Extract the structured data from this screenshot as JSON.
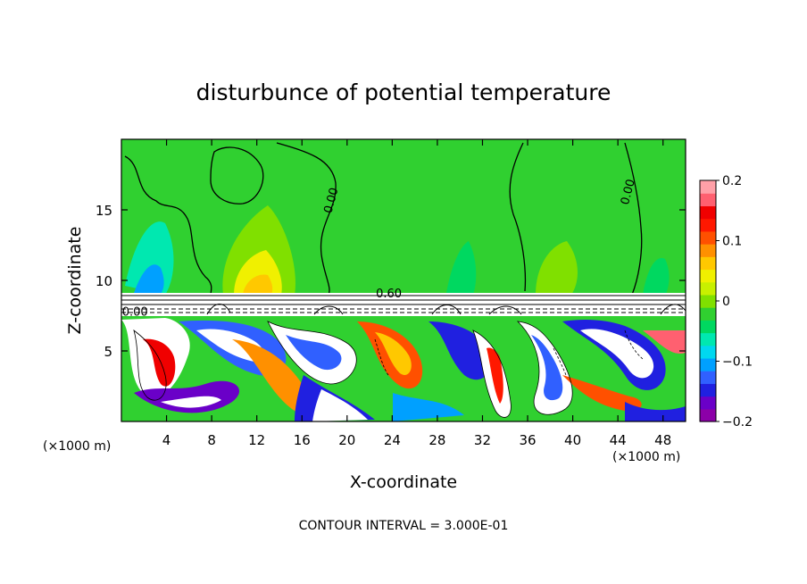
{
  "chart_data": {
    "type": "heatmap",
    "title": "disturbunce of potential temperature",
    "xlabel": "X-coordinate",
    "ylabel": "Z-coordinate",
    "x_unit": "(×1000 m)",
    "x_unit_right": "(×1000 m)",
    "xlim": [
      0,
      50
    ],
    "ylim": [
      0,
      20
    ],
    "x_ticks": [
      4,
      8,
      12,
      16,
      20,
      24,
      28,
      32,
      36,
      40,
      44,
      48
    ],
    "y_ticks": [
      5,
      10,
      15
    ],
    "colorbar": {
      "range": [
        -0.2,
        0.2
      ],
      "ticks": [
        0.2,
        0.1,
        0,
        -0.1,
        -0.2
      ],
      "tick_labels": [
        "0.2",
        "0.1",
        "0",
        "−0.1",
        "−0.2"
      ],
      "colors": [
        "#8c00a8",
        "#6a00c8",
        "#2020e0",
        "#3060ff",
        "#00a0ff",
        "#00d8f0",
        "#00e8b0",
        "#00d860",
        "#30d030",
        "#80e000",
        "#c8f000",
        "#f0f000",
        "#ffc800",
        "#ff9000",
        "#ff5000",
        "#ff1800",
        "#f00000",
        "#ff6070",
        "#ffa0a8"
      ]
    },
    "contour_labels": [
      {
        "text": "0.00",
        "x": 18.9,
        "z": 15.6
      },
      {
        "text": "0.00",
        "x": 45.2,
        "z": 16.2
      },
      {
        "text": "0.60",
        "x": 23.7,
        "z": 8.8
      },
      {
        "text": "0.00",
        "x": 1.2,
        "z": 7.5
      }
    ],
    "annotation": "CONTOUR INTERVAL = 3.000E-01"
  }
}
